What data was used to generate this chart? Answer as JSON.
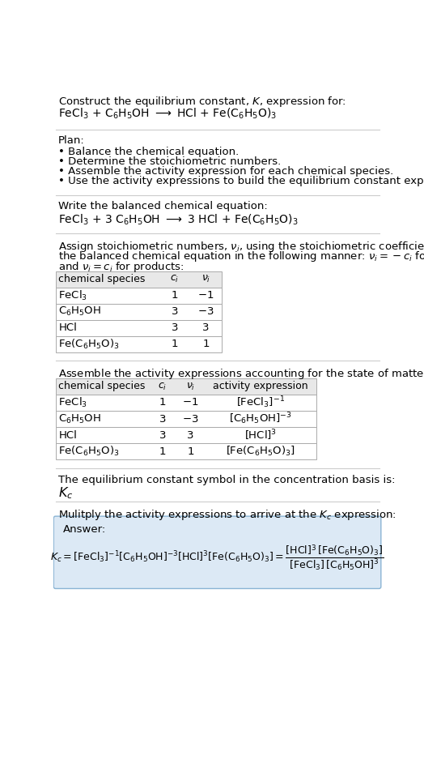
{
  "title_line1": "Construct the equilibrium constant, $K$, expression for:",
  "title_line2": "FeCl$_3$ + C$_6$H$_5$OH $\\longrightarrow$ HCl + Fe(C$_6$H$_5$O)$_3$",
  "plan_header": "Plan:",
  "plan_bullets": [
    "• Balance the chemical equation.",
    "• Determine the stoichiometric numbers.",
    "• Assemble the activity expression for each chemical species.",
    "• Use the activity expressions to build the equilibrium constant expression."
  ],
  "balanced_header": "Write the balanced chemical equation:",
  "balanced_eq": "FeCl$_3$ + 3 C$_6$H$_5$OH $\\longrightarrow$ 3 HCl + Fe(C$_6$H$_5$O)$_3$",
  "stoich_intro": "Assign stoichiometric numbers, $\\nu_i$, using the stoichiometric coefficients, $c_i$, from\nthe balanced chemical equation in the following manner: $\\nu_i = -c_i$ for reactants\nand $\\nu_i = c_i$ for products:",
  "table1_cols": [
    "chemical species",
    "$c_i$",
    "$\\nu_i$"
  ],
  "table1_rows": [
    [
      "FeCl$_3$",
      "1",
      "$-1$"
    ],
    [
      "C$_6$H$_5$OH",
      "3",
      "$-3$"
    ],
    [
      "HCl",
      "3",
      "3"
    ],
    [
      "Fe(C$_6$H$_5$O)$_3$",
      "1",
      "1"
    ]
  ],
  "activity_header": "Assemble the activity expressions accounting for the state of matter and $\\nu_i$:",
  "table2_cols": [
    "chemical species",
    "$c_i$",
    "$\\nu_i$",
    "activity expression"
  ],
  "table2_rows": [
    [
      "FeCl$_3$",
      "1",
      "$-1$",
      "[FeCl$_3$]$^{-1}$"
    ],
    [
      "C$_6$H$_5$OH",
      "3",
      "$-3$",
      "[C$_6$H$_5$OH]$^{-3}$"
    ],
    [
      "HCl",
      "3",
      "3",
      "[HCl]$^3$"
    ],
    [
      "Fe(C$_6$H$_5$O)$_3$",
      "1",
      "1",
      "[Fe(C$_6$H$_5$O)$_3$]"
    ]
  ],
  "kc_header": "The equilibrium constant symbol in the concentration basis is:",
  "kc_symbol": "$K_c$",
  "multiply_header": "Mulitply the activity expressions to arrive at the $K_c$ expression:",
  "answer_label": "Answer:",
  "bg_color": "#ffffff",
  "answer_bg_color": "#dce9f5",
  "table_header_bg": "#e8e8e8",
  "grid_color": "#aaaaaa",
  "separator_color": "#cccccc",
  "text_color": "#000000",
  "font_size": 9.5
}
